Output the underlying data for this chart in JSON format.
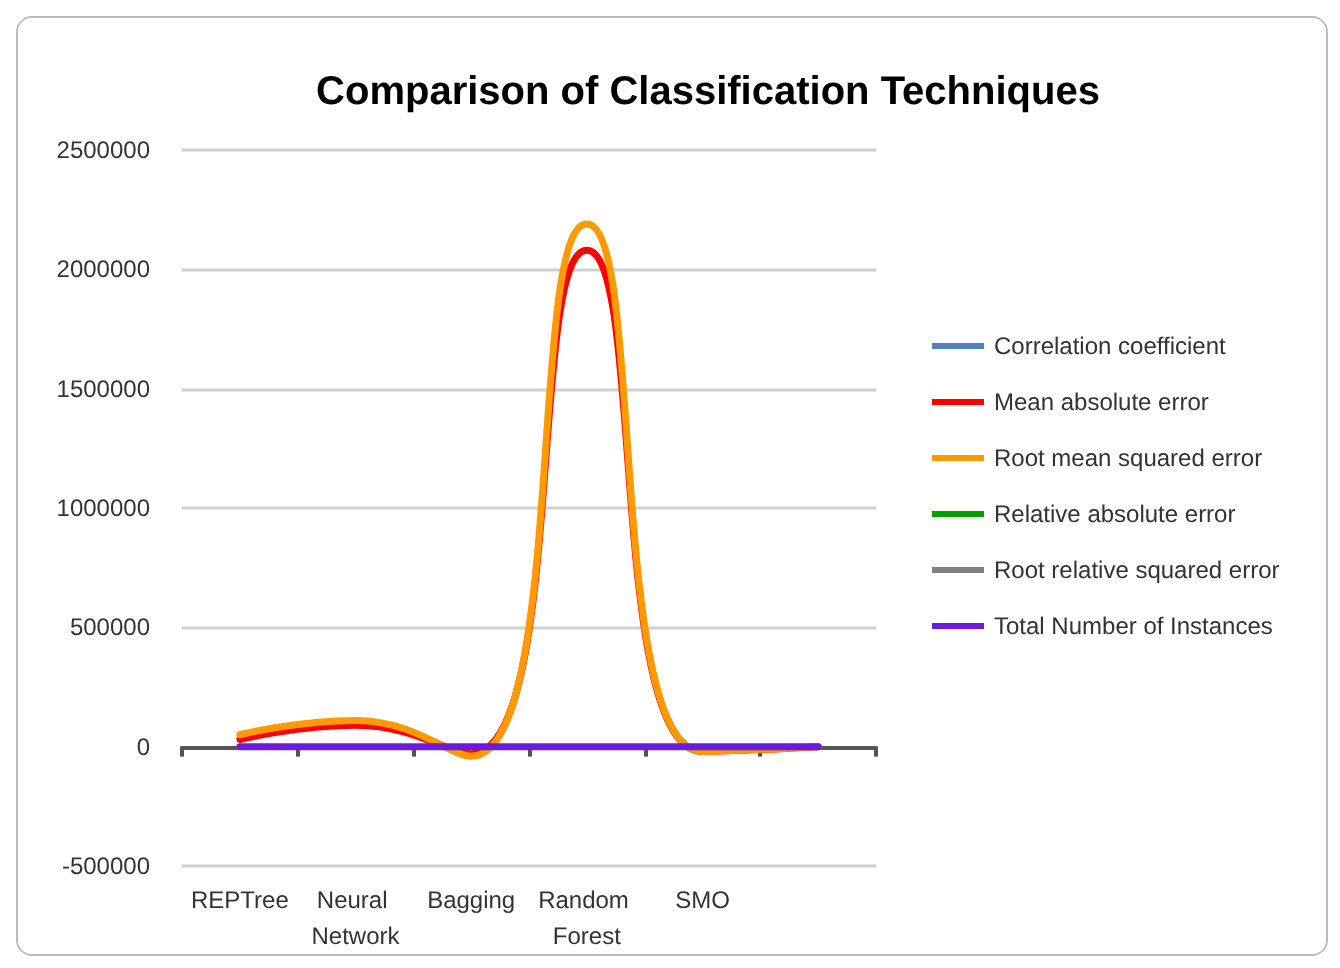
{
  "chart_data": {
    "type": "line",
    "title": "Comparison of Classification Techniques",
    "categories": [
      "REPTree",
      "Neural Network",
      "Bagging",
      "Random Forest",
      "SMO",
      null
    ],
    "series": [
      {
        "name": "Correlation coefficient",
        "color": "#4f81bd",
        "values": [
          null,
          null,
          null,
          null,
          null,
          null
        ]
      },
      {
        "name": "Mean absolute error",
        "color": "#ff0000",
        "values": [
          30000,
          90000,
          -30000,
          2080000,
          -20000,
          0
        ]
      },
      {
        "name": "Root mean squared error",
        "color": "#ff9900",
        "values": [
          50000,
          110000,
          -40000,
          2190000,
          -20000,
          0
        ]
      },
      {
        "name": "Relative absolute error",
        "color": "#00a000",
        "values": [
          null,
          null,
          null,
          null,
          null,
          null
        ]
      },
      {
        "name": "Root relative squared error",
        "color": "#808080",
        "values": [
          null,
          null,
          null,
          null,
          null,
          null
        ]
      },
      {
        "name": "Total Number of Instances",
        "color": "#6a1be0",
        "values": [
          0,
          0,
          0,
          0,
          0,
          0
        ]
      }
    ],
    "ylim": [
      -500000,
      2500000
    ],
    "yticks": [
      -500000,
      0,
      500000,
      1000000,
      1500000,
      2000000,
      2500000
    ],
    "grid": "y",
    "legend": "right",
    "marker": "none",
    "line_style": "solid"
  }
}
